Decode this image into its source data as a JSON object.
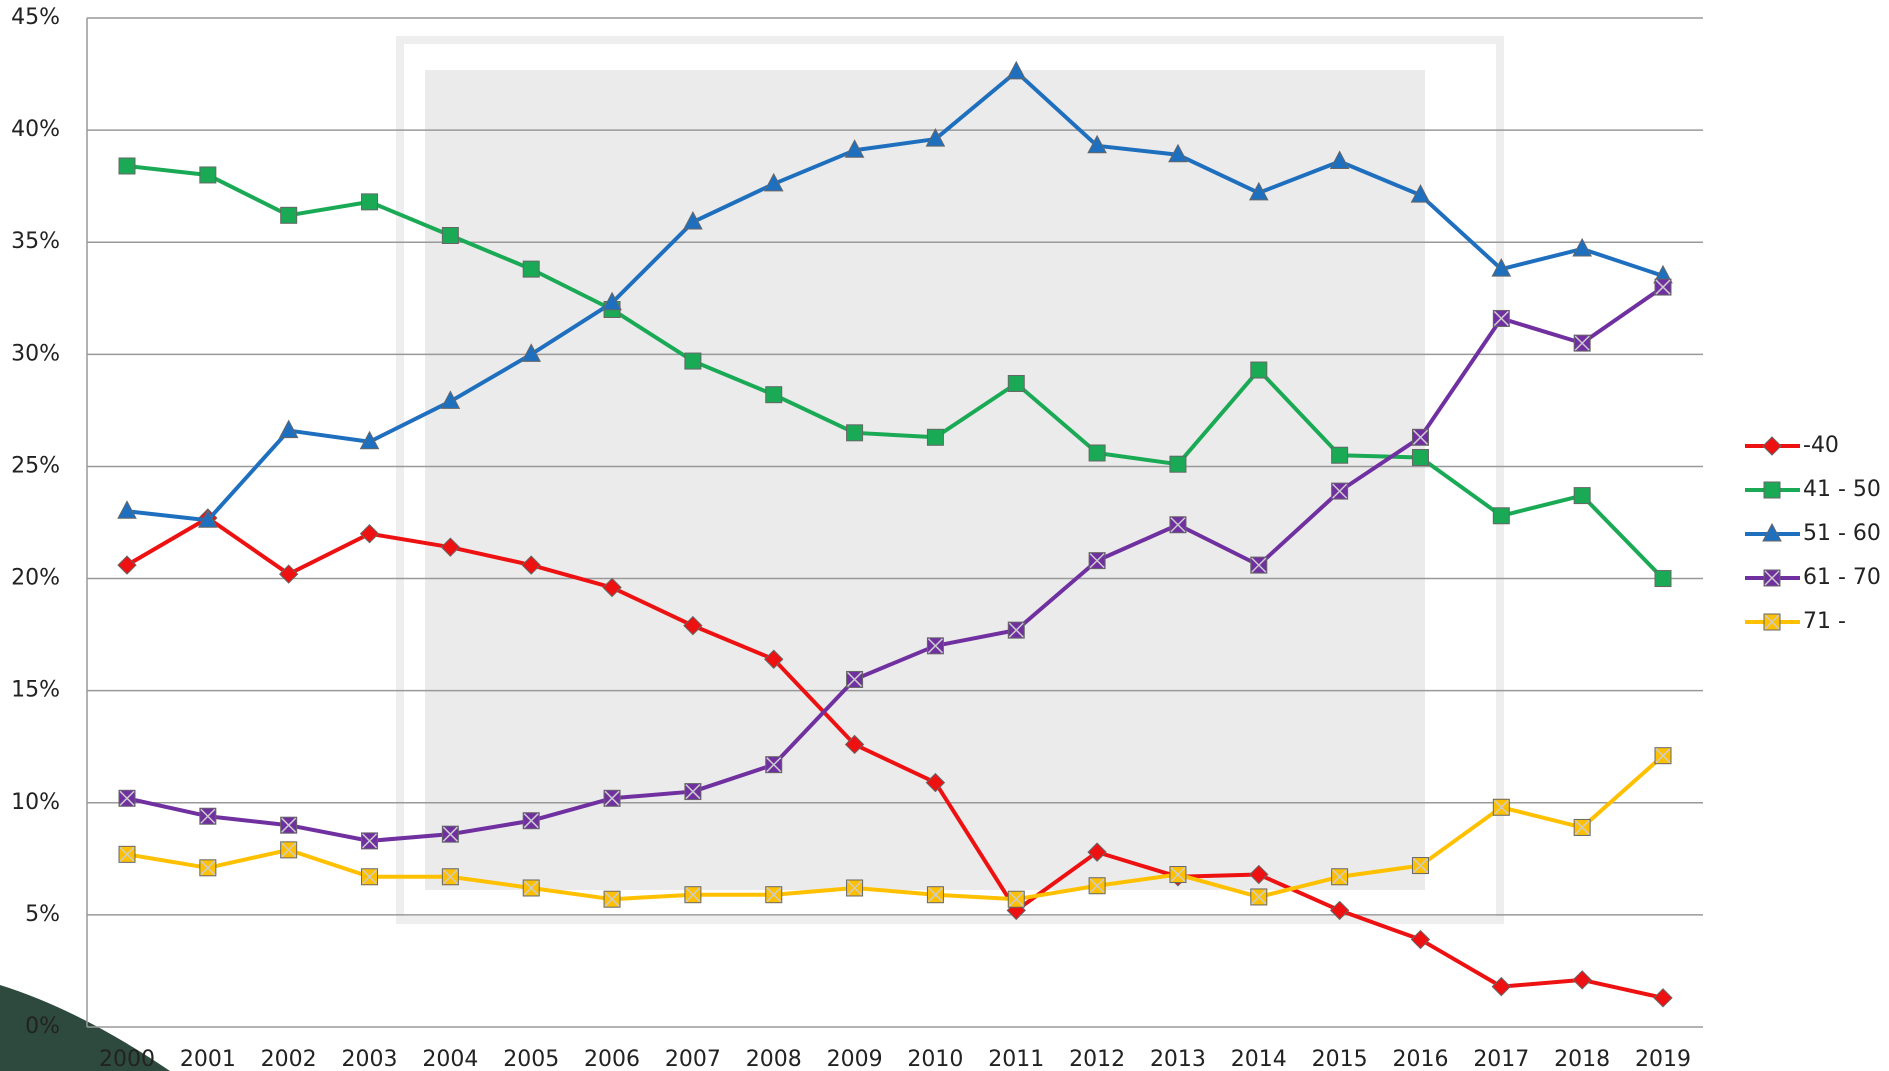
{
  "chart_data": {
    "type": "line",
    "categories": [
      "2000",
      "2001",
      "2002",
      "2003",
      "2004",
      "2005",
      "2006",
      "2007",
      "2008",
      "2009",
      "2010",
      "2011",
      "2012",
      "2013",
      "2014",
      "2015",
      "2016",
      "2017",
      "2018",
      "2019"
    ],
    "ylim": [
      0,
      45
    ],
    "yticks": [
      {
        "value": 0,
        "label": "0%"
      },
      {
        "value": 5,
        "label": "5%"
      },
      {
        "value": 10,
        "label": "10%"
      },
      {
        "value": 15,
        "label": "15%"
      },
      {
        "value": 20,
        "label": "20%"
      },
      {
        "value": 25,
        "label": "25%"
      },
      {
        "value": 30,
        "label": "30%"
      },
      {
        "value": 35,
        "label": "35%"
      },
      {
        "value": 40,
        "label": "40%"
      },
      {
        "value": 45,
        "label": "45%"
      }
    ],
    "grid": true,
    "legend": "right",
    "series": [
      {
        "name": "-40",
        "color": "#ee1111",
        "marker": "diamond",
        "values": [
          20.6,
          22.7,
          20.2,
          22.0,
          21.4,
          20.6,
          19.6,
          17.9,
          16.4,
          12.6,
          10.9,
          5.2,
          7.8,
          6.7,
          6.8,
          5.2,
          3.9,
          1.8,
          2.1,
          1.3
        ]
      },
      {
        "name": "41 - 50",
        "color": "#1aaa55",
        "marker": "square",
        "values": [
          38.4,
          38.0,
          36.2,
          36.8,
          35.3,
          33.8,
          32.0,
          29.7,
          28.2,
          26.5,
          26.3,
          28.7,
          25.6,
          25.1,
          29.3,
          25.5,
          25.4,
          22.8,
          23.7,
          20.0
        ]
      },
      {
        "name": "51 - 60",
        "color": "#1f6fbf",
        "marker": "triangle",
        "values": [
          23.0,
          22.6,
          26.6,
          26.1,
          27.9,
          30.0,
          32.3,
          35.9,
          37.6,
          39.1,
          39.6,
          42.6,
          39.3,
          38.9,
          37.2,
          38.6,
          37.1,
          33.8,
          34.7,
          33.5
        ]
      },
      {
        "name": "61 - 70",
        "color": "#7030a0",
        "marker": "xsquare",
        "values": [
          10.2,
          9.4,
          9.0,
          8.3,
          8.6,
          9.2,
          10.2,
          10.5,
          11.7,
          15.5,
          17.0,
          17.7,
          20.8,
          22.4,
          20.6,
          23.9,
          26.3,
          31.6,
          30.5,
          33.0
        ]
      },
      {
        "name": "71 -",
        "color": "#ffc000",
        "marker": "xsquare",
        "values": [
          7.7,
          7.1,
          7.9,
          6.7,
          6.7,
          6.2,
          5.7,
          5.9,
          5.9,
          6.2,
          5.9,
          5.7,
          6.3,
          6.8,
          5.8,
          6.7,
          7.2,
          9.8,
          8.9,
          12.1
        ]
      }
    ]
  }
}
